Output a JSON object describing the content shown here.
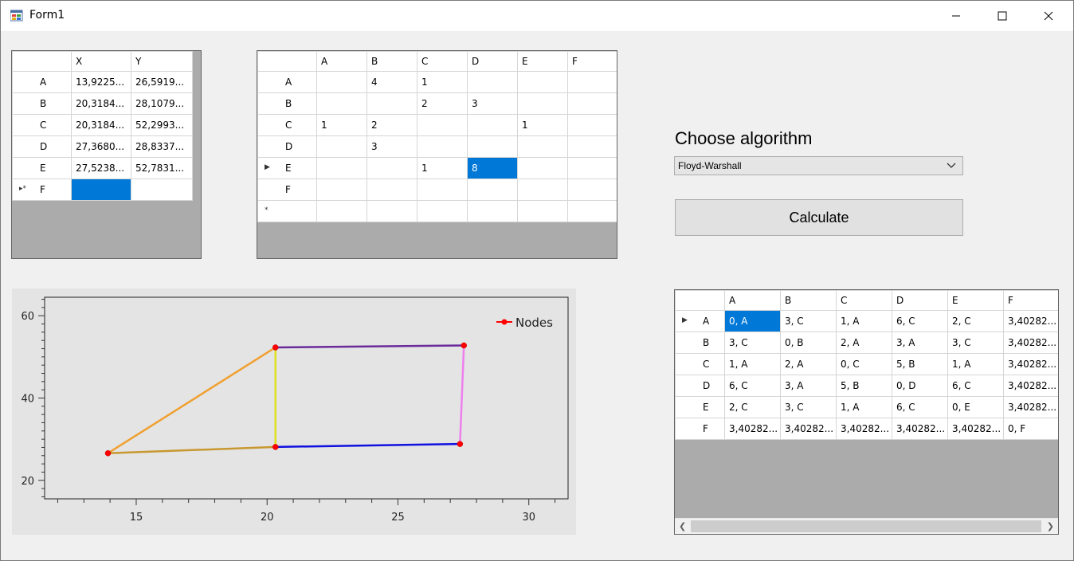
{
  "window": {
    "title": "Form1",
    "icon": "winforms-app-icon",
    "controls": [
      "minimize-icon",
      "maximize-icon",
      "close-icon"
    ]
  },
  "coords_grid": {
    "columns": [
      "X",
      "Y"
    ],
    "rows": [
      {
        "name": "A",
        "x": "13,9225...",
        "y": "26,5919..."
      },
      {
        "name": "B",
        "x": "20,3184...",
        "y": "28,1079..."
      },
      {
        "name": "C",
        "x": "20,3184...",
        "y": "52,2993..."
      },
      {
        "name": "D",
        "x": "27,3680...",
        "y": "28,8337..."
      },
      {
        "name": "E",
        "x": "27,5238...",
        "y": "52,7831..."
      },
      {
        "name": "F",
        "x": "",
        "y": ""
      }
    ],
    "current_row_marker": "▸*"
  },
  "adjacency_grid": {
    "columns": [
      "A",
      "B",
      "C",
      "D",
      "E",
      "F"
    ],
    "rows": [
      {
        "name": "A",
        "cells": [
          "",
          "4",
          "1",
          "",
          "",
          ""
        ]
      },
      {
        "name": "B",
        "cells": [
          "",
          "",
          "2",
          "3",
          "",
          ""
        ]
      },
      {
        "name": "C",
        "cells": [
          "1",
          "2",
          "",
          "",
          "1",
          ""
        ]
      },
      {
        "name": "D",
        "cells": [
          "",
          "3",
          "",
          "",
          "",
          ""
        ]
      },
      {
        "name": "E",
        "cells": [
          "",
          "",
          "1",
          "8",
          "",
          ""
        ]
      },
      {
        "name": "F",
        "cells": [
          "",
          "",
          "",
          "",
          "",
          ""
        ]
      }
    ],
    "new_row_marker": "*"
  },
  "algorithm": {
    "label": "Choose algorithm",
    "selected": "Floyd-Warshall",
    "calculate_label": "Calculate"
  },
  "result_grid": {
    "columns": [
      "A",
      "B",
      "C",
      "D",
      "E",
      "F"
    ],
    "rows": [
      {
        "name": "A",
        "cells": [
          "0, A",
          "3, C",
          "1, A",
          "6, C",
          "2, C",
          "3,40282..."
        ]
      },
      {
        "name": "B",
        "cells": [
          "3, C",
          "0, B",
          "2, A",
          "3, A",
          "3, C",
          "3,40282..."
        ]
      },
      {
        "name": "C",
        "cells": [
          "1, A",
          "2, A",
          "0, C",
          "5, B",
          "1, A",
          "3,40282..."
        ]
      },
      {
        "name": "D",
        "cells": [
          "6, C",
          "3, A",
          "5, B",
          "0, D",
          "6, C",
          "3,40282..."
        ]
      },
      {
        "name": "E",
        "cells": [
          "2, C",
          "3, C",
          "1, A",
          "6, C",
          "0, E",
          "3,40282..."
        ]
      },
      {
        "name": "F",
        "cells": [
          "3,40282...",
          "3,40282...",
          "3,40282...",
          "3,40282...",
          "3,40282...",
          "0, F"
        ]
      }
    ]
  },
  "chart_data": {
    "type": "scatter",
    "legend": {
      "label": "Nodes",
      "position": "top-right",
      "color": "#ff0000"
    },
    "xlim": [
      11.5,
      31.5
    ],
    "ylim": [
      15.5,
      64.5
    ],
    "xticks": [
      15,
      20,
      25,
      30
    ],
    "yticks": [
      20,
      40,
      60
    ],
    "nodes": [
      {
        "name": "A",
        "x": 13.92,
        "y": 26.59
      },
      {
        "name": "B",
        "x": 20.32,
        "y": 28.11
      },
      {
        "name": "C",
        "x": 20.32,
        "y": 52.3
      },
      {
        "name": "D",
        "x": 27.37,
        "y": 28.83
      },
      {
        "name": "E",
        "x": 27.52,
        "y": 52.78
      }
    ],
    "edges": [
      {
        "from": "A",
        "to": "C",
        "color": "#f0a030"
      },
      {
        "from": "A",
        "to": "B",
        "color": "#c89830"
      },
      {
        "from": "B",
        "to": "C",
        "color": "#e0e020"
      },
      {
        "from": "C",
        "to": "E",
        "color": "#6a2a9a"
      },
      {
        "from": "B",
        "to": "D",
        "color": "#1010e0"
      },
      {
        "from": "D",
        "to": "E",
        "color": "#ee80ee"
      }
    ]
  }
}
